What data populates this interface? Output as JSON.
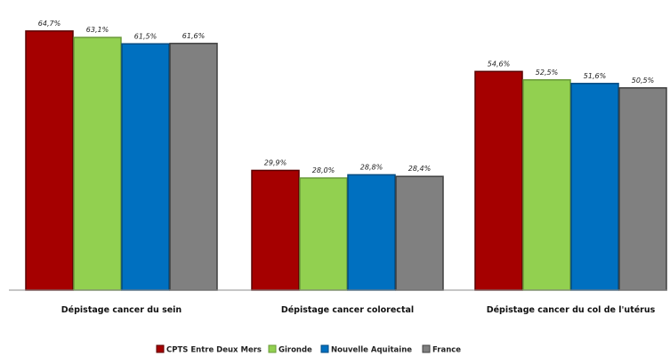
{
  "chart_data": {
    "type": "bar",
    "categories": [
      "Dépistage cancer du sein",
      "Dépistage cancer colorectal",
      "Dépistage cancer du col de l'utérus"
    ],
    "series": [
      {
        "name": "CPTS Entre Deux Mers",
        "values": [
          64.7,
          29.9,
          54.6
        ],
        "labels": [
          "64,7%",
          "29,9%",
          "54,6%"
        ],
        "color": "#a50000",
        "stroke": "#5a0000"
      },
      {
        "name": "Gironde",
        "values": [
          63.1,
          28.0,
          52.5
        ],
        "labels": [
          "63,1%",
          "28,0%",
          "52,5%"
        ],
        "color": "#92d050",
        "stroke": "#6a9a3a"
      },
      {
        "name": "Nouvelle Aquitaine",
        "values": [
          61.5,
          28.8,
          51.6
        ],
        "labels": [
          "61,5%",
          "28,8%",
          "51,6%"
        ],
        "color": "#0070c0",
        "stroke": "#004a80"
      },
      {
        "name": "France",
        "values": [
          61.6,
          28.4,
          50.5
        ],
        "labels": [
          "61,6%",
          "28,4%",
          "50,5%"
        ],
        "color": "#808080",
        "stroke": "#404040"
      }
    ],
    "ylim": [
      0,
      70
    ],
    "grid": false,
    "legend": "bottom",
    "title": "",
    "xlabel": "",
    "ylabel": ""
  }
}
